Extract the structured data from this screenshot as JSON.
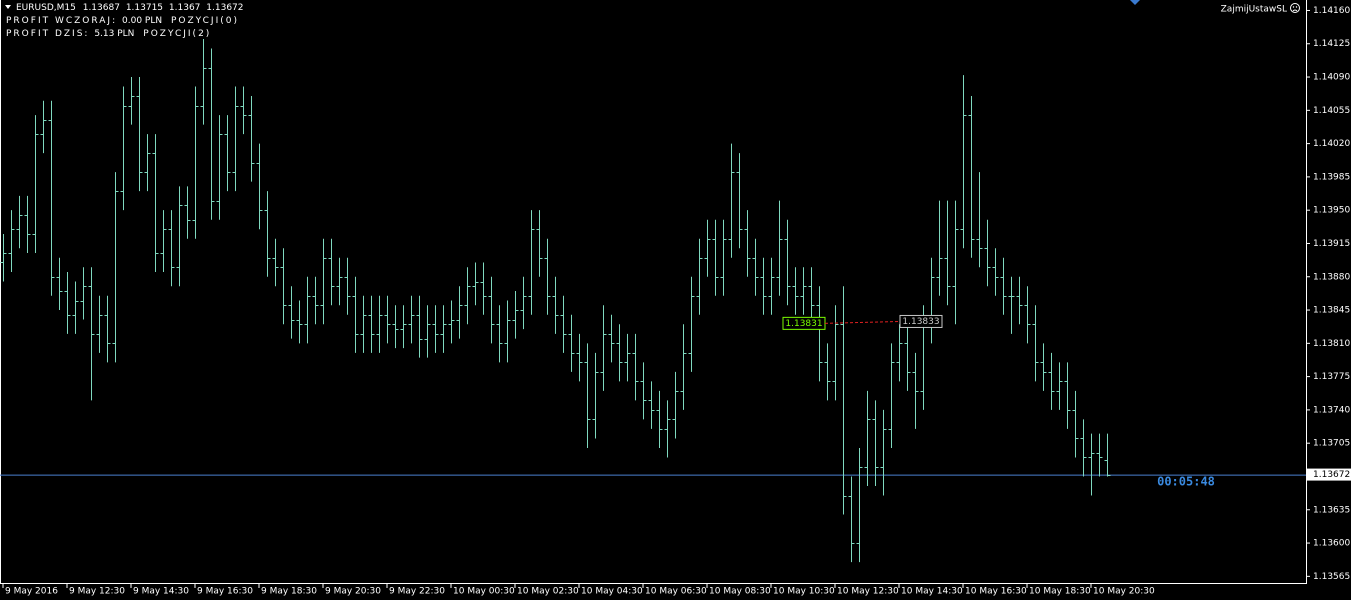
{
  "chart_data": {
    "type": "ohlc",
    "header": {
      "symbol": "EURUSD,M15",
      "open": 1.13687,
      "high": 1.13715,
      "low": 1.1367,
      "close": 1.13672
    },
    "info_lines": [
      {
        "label": "PROFIT WCZORAJ:",
        "value": "0.00 PLN",
        "positions": "POZYCJI(0)"
      },
      {
        "label": "PROFIT DZIS:",
        "value": "5.13 PLN",
        "positions": "POZYCJI(2)"
      }
    ],
    "expert": "ZajmijUstawSL",
    "countdown": "00:05:48",
    "color": "#7fd9bf",
    "current_price": 1.13672,
    "current_price_color": "#4a7fd0",
    "trades": [
      {
        "price": 1.13831,
        "color": "#7cfc00"
      },
      {
        "price": 1.13833,
        "color": "#c8c8c8"
      }
    ],
    "ylim": [
      1.13558,
      1.14171
    ],
    "yticks": [
      {
        "value": 1.1416,
        "label": "1.14160"
      },
      {
        "value": 1.14125,
        "label": "1.14125"
      },
      {
        "value": 1.1409,
        "label": "1.14090"
      },
      {
        "value": 1.14055,
        "label": "1.14055"
      },
      {
        "value": 1.1402,
        "label": "1.14020"
      },
      {
        "value": 1.13985,
        "label": "1.13985"
      },
      {
        "value": 1.1395,
        "label": "1.13950"
      },
      {
        "value": 1.13915,
        "label": "1.13915"
      },
      {
        "value": 1.1388,
        "label": "1.13880"
      },
      {
        "value": 1.13845,
        "label": "1.13845"
      },
      {
        "value": 1.1381,
        "label": "1.13810"
      },
      {
        "value": 1.13775,
        "label": "1.13775"
      },
      {
        "value": 1.1374,
        "label": "1.13740"
      },
      {
        "value": 1.13705,
        "label": "1.13705"
      },
      {
        "value": 1.13635,
        "label": "1.13635"
      },
      {
        "value": 1.136,
        "label": "1.13600"
      },
      {
        "value": 1.13565,
        "label": "1.13565"
      }
    ],
    "categories": [
      "9 May 2016",
      null,
      null,
      null,
      null,
      null,
      null,
      null,
      "9 May 12:30",
      null,
      null,
      null,
      null,
      null,
      null,
      null,
      "9 May 14:30",
      null,
      null,
      null,
      null,
      null,
      null,
      null,
      "9 May 16:30",
      null,
      null,
      null,
      null,
      null,
      null,
      null,
      "9 May 18:30",
      null,
      null,
      null,
      null,
      null,
      null,
      null,
      "9 May 20:30",
      null,
      null,
      null,
      null,
      null,
      null,
      null,
      "9 May 22:30",
      null,
      null,
      null,
      null,
      null,
      null,
      null,
      "10 May 00:30",
      null,
      null,
      null,
      null,
      null,
      null,
      null,
      "10 May 02:30",
      null,
      null,
      null,
      null,
      null,
      null,
      null,
      "10 May 04:30",
      null,
      null,
      null,
      null,
      null,
      null,
      null,
      "10 May 06:30",
      null,
      null,
      null,
      null,
      null,
      null,
      null,
      "10 May 08:30",
      null,
      null,
      null,
      null,
      null,
      null,
      null,
      "10 May 10:30",
      null,
      null,
      null,
      null,
      null,
      null,
      null,
      "10 May 12:30",
      null,
      null,
      null,
      null,
      null,
      null,
      null,
      "10 May 14:30",
      null,
      null,
      null,
      null,
      null,
      null,
      null,
      "10 May 16:30",
      null,
      null,
      null,
      null,
      null,
      null,
      null,
      "10 May 18:30",
      null,
      null,
      null,
      null,
      null,
      null,
      null,
      "10 May 20:30",
      null,
      null
    ],
    "open": [
      1.13895,
      1.13905,
      1.1393,
      1.13945,
      1.13925,
      1.1403,
      1.14045,
      1.1388,
      1.13865,
      1.1384,
      1.13855,
      1.1387,
      1.1382,
      1.1384,
      1.1381,
      1.1397,
      1.1406,
      1.1407,
      1.1399,
      1.1401,
      1.13905,
      1.1393,
      1.1389,
      1.13955,
      1.1394,
      1.1406,
      1.141,
      1.1396,
      1.1403,
      1.1399,
      1.1406,
      1.1405,
      1.14,
      1.1395,
      1.139,
      1.1389,
      1.1385,
      1.13835,
      1.1383,
      1.1386,
      1.1385,
      1.139,
      1.1387,
      1.1388,
      1.1386,
      1.1382,
      1.1384,
      1.1382,
      1.1384,
      1.1383,
      1.13825,
      1.1383,
      1.1384,
      1.13815,
      1.1383,
      1.1382,
      1.1383,
      1.13835,
      1.1385,
      1.1387,
      1.13875,
      1.1386,
      1.1383,
      1.1381,
      1.13835,
      1.13845,
      1.1386,
      1.1393,
      1.139,
      1.1386,
      1.1384,
      1.1382,
      1.138,
      1.1379,
      1.1373,
      1.1378,
      1.1382,
      1.1381,
      1.1379,
      1.138,
      1.1377,
      1.1375,
      1.1374,
      1.1372,
      1.1373,
      1.1376,
      1.138,
      1.1386,
      1.139,
      1.1392,
      1.1388,
      1.1392,
      1.1399,
      1.1393,
      1.139,
      1.1388,
      1.1386,
      1.1388,
      1.1392,
      1.1387,
      1.1386,
      1.1387,
      1.1385,
      1.1379,
      1.1377,
      1.1383,
      1.1365,
      1.136,
      1.1368,
      1.1373,
      1.1368,
      1.1372,
      1.1379,
      1.1381,
      1.1378,
      1.1376,
      1.1383,
      1.1388,
      1.139,
      1.1387,
      1.1393,
      1.1405,
      1.1392,
      1.1391,
      1.1389,
      1.1388,
      1.1386,
      1.1386,
      1.1385,
      1.1383,
      1.1379,
      1.1378,
      1.1376,
      1.1377,
      1.1374,
      1.1371,
      1.1369,
      1.13695,
      1.13687
    ],
    "high": [
      1.13925,
      1.1395,
      1.13965,
      1.13965,
      1.1405,
      1.14065,
      1.14065,
      1.139,
      1.13885,
      1.13875,
      1.1389,
      1.1389,
      1.1386,
      1.1386,
      1.1399,
      1.1408,
      1.1409,
      1.1409,
      1.1403,
      1.1403,
      1.1395,
      1.1395,
      1.13975,
      1.13975,
      1.1408,
      1.1413,
      1.1412,
      1.1405,
      1.1405,
      1.1408,
      1.1408,
      1.1407,
      1.1402,
      1.1397,
      1.1392,
      1.1391,
      1.1387,
      1.13855,
      1.1388,
      1.1388,
      1.1392,
      1.1392,
      1.139,
      1.139,
      1.1388,
      1.1386,
      1.1386,
      1.1386,
      1.1386,
      1.1385,
      1.1385,
      1.1386,
      1.1386,
      1.1385,
      1.1385,
      1.1385,
      1.13855,
      1.1387,
      1.1389,
      1.13895,
      1.13895,
      1.1388,
      1.1385,
      1.13855,
      1.13865,
      1.1388,
      1.1395,
      1.1395,
      1.1392,
      1.1388,
      1.1386,
      1.1384,
      1.1382,
      1.1381,
      1.138,
      1.1385,
      1.1384,
      1.1383,
      1.1382,
      1.1382,
      1.1379,
      1.1377,
      1.1376,
      1.1375,
      1.1378,
      1.1383,
      1.1388,
      1.1392,
      1.1394,
      1.1394,
      1.1394,
      1.1402,
      1.1401,
      1.1395,
      1.1392,
      1.139,
      1.139,
      1.1396,
      1.1394,
      1.1389,
      1.1389,
      1.1389,
      1.1387,
      1.1381,
      1.1385,
      1.1387,
      1.1367,
      1.137,
      1.1376,
      1.1375,
      1.1374,
      1.1381,
      1.1383,
      1.1383,
      1.138,
      1.1385,
      1.139,
      1.1396,
      1.1396,
      1.1396,
      1.14092,
      1.1407,
      1.1399,
      1.1394,
      1.1391,
      1.139,
      1.1388,
      1.1388,
      1.1387,
      1.1385,
      1.1381,
      1.138,
      1.1379,
      1.1379,
      1.1376,
      1.1373,
      1.13715,
      1.13715,
      1.13715
    ],
    "low": [
      1.13875,
      1.13885,
      1.1391,
      1.13905,
      1.13905,
      1.1401,
      1.1386,
      1.13845,
      1.1382,
      1.1382,
      1.13835,
      1.1375,
      1.138,
      1.1379,
      1.1379,
      1.1395,
      1.1404,
      1.1397,
      1.1397,
      1.13885,
      1.13885,
      1.1387,
      1.1387,
      1.1392,
      1.1392,
      1.1404,
      1.1394,
      1.1394,
      1.1397,
      1.1397,
      1.1403,
      1.1398,
      1.1393,
      1.1388,
      1.1387,
      1.1383,
      1.13815,
      1.1381,
      1.1381,
      1.1383,
      1.1383,
      1.1385,
      1.1385,
      1.1384,
      1.138,
      1.138,
      1.138,
      1.138,
      1.1381,
      1.13805,
      1.13805,
      1.1381,
      1.13795,
      1.13795,
      1.138,
      1.138,
      1.1381,
      1.13815,
      1.1383,
      1.1385,
      1.1384,
      1.1381,
      1.1379,
      1.1379,
      1.13815,
      1.13825,
      1.1384,
      1.1388,
      1.1384,
      1.1382,
      1.138,
      1.1378,
      1.1377,
      1.137,
      1.1371,
      1.1376,
      1.1379,
      1.1377,
      1.1377,
      1.1375,
      1.1373,
      1.1372,
      1.137,
      1.1369,
      1.1371,
      1.1374,
      1.1378,
      1.1384,
      1.1388,
      1.1386,
      1.1386,
      1.139,
      1.1391,
      1.1388,
      1.1386,
      1.1384,
      1.1384,
      1.1386,
      1.1385,
      1.1384,
      1.1384,
      1.1383,
      1.1377,
      1.1375,
      1.1375,
      1.1363,
      1.1358,
      1.1358,
      1.1366,
      1.1366,
      1.1365,
      1.137,
      1.1377,
      1.1376,
      1.1372,
      1.1374,
      1.1381,
      1.1386,
      1.1385,
      1.1383,
      1.1391,
      1.139,
      1.1389,
      1.1387,
      1.1386,
      1.1384,
      1.1382,
      1.1383,
      1.1381,
      1.1377,
      1.1376,
      1.1374,
      1.1374,
      1.1372,
      1.1369,
      1.1367,
      1.1365,
      1.1367,
      1.1367
    ],
    "close": [
      1.13905,
      1.1393,
      1.13945,
      1.13925,
      1.1403,
      1.14045,
      1.1388,
      1.13865,
      1.1384,
      1.13855,
      1.1387,
      1.1382,
      1.1384,
      1.1381,
      1.1397,
      1.1406,
      1.1407,
      1.1399,
      1.1401,
      1.13905,
      1.1393,
      1.1389,
      1.13955,
      1.1394,
      1.1406,
      1.141,
      1.1396,
      1.1403,
      1.1399,
      1.1406,
      1.1405,
      1.14,
      1.1395,
      1.139,
      1.1389,
      1.1385,
      1.13835,
      1.1383,
      1.1386,
      1.1385,
      1.139,
      1.1387,
      1.1388,
      1.1386,
      1.1382,
      1.1384,
      1.1382,
      1.1384,
      1.1383,
      1.13825,
      1.1383,
      1.1384,
      1.13815,
      1.1383,
      1.1382,
      1.1383,
      1.13835,
      1.1385,
      1.1387,
      1.13875,
      1.1386,
      1.1383,
      1.1381,
      1.13835,
      1.13845,
      1.1386,
      1.1393,
      1.139,
      1.1386,
      1.1384,
      1.1382,
      1.138,
      1.1379,
      1.1373,
      1.1378,
      1.1382,
      1.1381,
      1.1379,
      1.138,
      1.1377,
      1.1375,
      1.1374,
      1.1372,
      1.1373,
      1.1376,
      1.138,
      1.1386,
      1.139,
      1.1392,
      1.1388,
      1.1392,
      1.1399,
      1.1393,
      1.139,
      1.1388,
      1.1386,
      1.1388,
      1.1392,
      1.1387,
      1.1386,
      1.1387,
      1.1385,
      1.1379,
      1.1377,
      1.1383,
      1.1365,
      1.136,
      1.1368,
      1.1373,
      1.1368,
      1.1372,
      1.1379,
      1.1381,
      1.1378,
      1.1376,
      1.1383,
      1.1388,
      1.139,
      1.1387,
      1.1393,
      1.1405,
      1.1392,
      1.1391,
      1.1389,
      1.1388,
      1.1386,
      1.1386,
      1.1385,
      1.1383,
      1.1379,
      1.1378,
      1.1376,
      1.1377,
      1.1374,
      1.1371,
      1.1369,
      1.13695,
      1.1369,
      1.13672
    ]
  }
}
